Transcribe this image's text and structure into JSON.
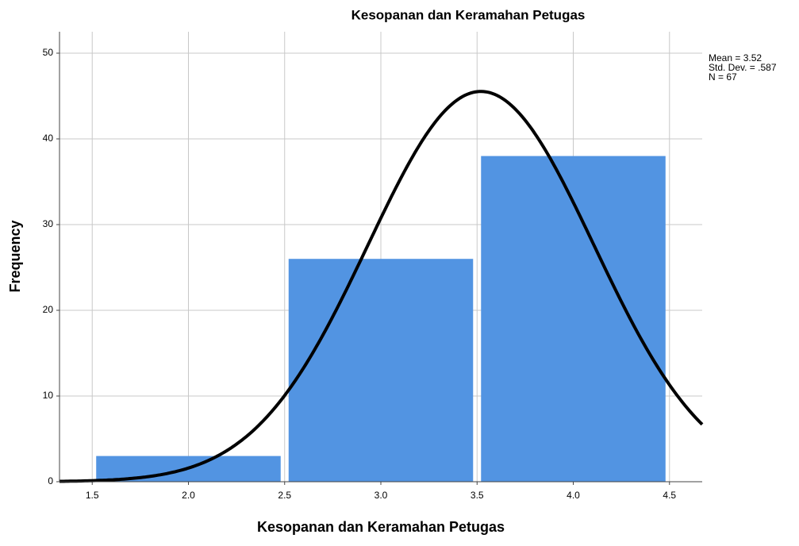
{
  "chart_data": {
    "type": "histogram",
    "title": "Kesopanan dan Keramahan Petugas",
    "x_label": "Kesopanan dan Keramahan Petugas",
    "y_label": "Frequency",
    "bins": [
      1.5,
      2.5,
      3.5,
      4.5
    ],
    "counts": [
      3,
      26,
      38
    ],
    "color": "#5294e2",
    "xlim": [
      1.33,
      4.67
    ],
    "ylim": [
      0,
      52.5
    ],
    "xticks": [
      1.5,
      {
        "value": 2,
        "label": "2.0"
      },
      2.5,
      {
        "value": 3,
        "label": "3.0"
      },
      3.5,
      {
        "value": 4,
        "label": "4.0"
      },
      4.5
    ],
    "yticks": [
      0,
      10,
      20,
      30,
      40,
      50
    ],
    "grid": true,
    "normal_curve": {
      "mean": 3.52,
      "std": 0.587,
      "n": 67,
      "labels": [
        "Mean = 3.52",
        "Std. Dev. = .587",
        "N = 67"
      ]
    }
  }
}
